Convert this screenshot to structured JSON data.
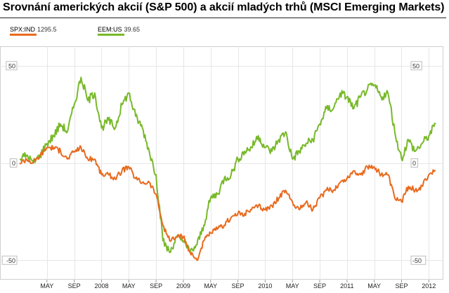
{
  "chart_data": {
    "type": "line",
    "title": "Srovnání amerických akcií (S&P 500) a akcií mladých trhů (MSCI Emerging Markets)",
    "xlabel": "",
    "ylabel": "",
    "y_unit": "%",
    "ylim": [
      -60,
      60
    ],
    "yticks": [
      50,
      0,
      -50
    ],
    "ytick_labels": [
      "50",
      "0",
      "-50"
    ],
    "grid": true,
    "legend_position": "top-left",
    "x_ticks": [
      {
        "label": "MAY",
        "x": "2007-05"
      },
      {
        "label": "SEP",
        "x": "2007-09"
      },
      {
        "label": "2008",
        "x": "2008-01"
      },
      {
        "label": "MAY",
        "x": "2008-05"
      },
      {
        "label": "SEP",
        "x": "2008-09"
      },
      {
        "label": "2009",
        "x": "2009-01"
      },
      {
        "label": "MAY",
        "x": "2009-05"
      },
      {
        "label": "SEP",
        "x": "2009-09"
      },
      {
        "label": "2010",
        "x": "2010-01"
      },
      {
        "label": "MAY",
        "x": "2010-05"
      },
      {
        "label": "SEP",
        "x": "2010-09"
      },
      {
        "label": "2011",
        "x": "2011-01"
      },
      {
        "label": "MAY",
        "x": "2011-05"
      },
      {
        "label": "SEP",
        "x": "2011-09"
      },
      {
        "label": "2012",
        "x": "2012-01"
      }
    ],
    "x_range": [
      "2007-01",
      "2012-02"
    ],
    "series": [
      {
        "name": "EEM:US",
        "legend_value": "39.65",
        "color": "#78b92a",
        "points": [
          [
            "2007-01",
            2
          ],
          [
            "2007-02",
            4
          ],
          [
            "2007-03",
            0
          ],
          [
            "2007-04",
            4
          ],
          [
            "2007-05",
            10
          ],
          [
            "2007-06",
            14
          ],
          [
            "2007-07",
            20
          ],
          [
            "2007-08",
            16
          ],
          [
            "2007-09",
            30
          ],
          [
            "2007-10",
            44
          ],
          [
            "2007-11",
            32
          ],
          [
            "2007-12",
            36
          ],
          [
            "2008-01",
            18
          ],
          [
            "2008-02",
            22
          ],
          [
            "2008-03",
            18
          ],
          [
            "2008-04",
            30
          ],
          [
            "2008-05",
            36
          ],
          [
            "2008-06",
            24
          ],
          [
            "2008-07",
            18
          ],
          [
            "2008-08",
            6
          ],
          [
            "2008-09",
            -6
          ],
          [
            "2008-10",
            -40
          ],
          [
            "2008-11",
            -46
          ],
          [
            "2008-12",
            -38
          ],
          [
            "2009-01",
            -40
          ],
          [
            "2009-02",
            -46
          ],
          [
            "2009-03",
            -42
          ],
          [
            "2009-04",
            -32
          ],
          [
            "2009-05",
            -18
          ],
          [
            "2009-06",
            -16
          ],
          [
            "2009-07",
            -8
          ],
          [
            "2009-08",
            -6
          ],
          [
            "2009-09",
            2
          ],
          [
            "2009-10",
            6
          ],
          [
            "2009-11",
            8
          ],
          [
            "2009-12",
            14
          ],
          [
            "2010-01",
            8
          ],
          [
            "2010-02",
            6
          ],
          [
            "2010-03",
            12
          ],
          [
            "2010-04",
            16
          ],
          [
            "2010-05",
            2
          ],
          [
            "2010-06",
            6
          ],
          [
            "2010-07",
            10
          ],
          [
            "2010-08",
            12
          ],
          [
            "2010-09",
            20
          ],
          [
            "2010-10",
            28
          ],
          [
            "2010-11",
            28
          ],
          [
            "2010-12",
            36
          ],
          [
            "2011-01",
            34
          ],
          [
            "2011-02",
            28
          ],
          [
            "2011-03",
            34
          ],
          [
            "2011-04",
            38
          ],
          [
            "2011-05",
            40
          ],
          [
            "2011-06",
            34
          ],
          [
            "2011-07",
            36
          ],
          [
            "2011-08",
            16
          ],
          [
            "2011-09",
            2
          ],
          [
            "2011-10",
            12
          ],
          [
            "2011-11",
            6
          ],
          [
            "2011-12",
            10
          ],
          [
            "2012-01",
            14
          ],
          [
            "2012-02",
            20
          ]
        ]
      },
      {
        "name": "SPX:IND",
        "legend_value": "1295.5",
        "color": "#e86b1f",
        "points": [
          [
            "2007-01",
            0
          ],
          [
            "2007-02",
            2
          ],
          [
            "2007-03",
            0
          ],
          [
            "2007-04",
            4
          ],
          [
            "2007-05",
            8
          ],
          [
            "2007-06",
            8
          ],
          [
            "2007-07",
            6
          ],
          [
            "2007-08",
            2
          ],
          [
            "2007-09",
            6
          ],
          [
            "2007-10",
            8
          ],
          [
            "2007-11",
            2
          ],
          [
            "2007-12",
            2
          ],
          [
            "2008-01",
            -6
          ],
          [
            "2008-02",
            -6
          ],
          [
            "2008-03",
            -8
          ],
          [
            "2008-04",
            -4
          ],
          [
            "2008-05",
            -2
          ],
          [
            "2008-06",
            -8
          ],
          [
            "2008-07",
            -10
          ],
          [
            "2008-08",
            -10
          ],
          [
            "2008-09",
            -16
          ],
          [
            "2008-10",
            -32
          ],
          [
            "2008-11",
            -40
          ],
          [
            "2008-12",
            -38
          ],
          [
            "2009-01",
            -38
          ],
          [
            "2009-02",
            -46
          ],
          [
            "2009-03",
            -50
          ],
          [
            "2009-04",
            -40
          ],
          [
            "2009-05",
            -36
          ],
          [
            "2009-06",
            -34
          ],
          [
            "2009-07",
            -32
          ],
          [
            "2009-08",
            -28
          ],
          [
            "2009-09",
            -26
          ],
          [
            "2009-10",
            -26
          ],
          [
            "2009-11",
            -24
          ],
          [
            "2009-12",
            -22
          ],
          [
            "2010-01",
            -24
          ],
          [
            "2010-02",
            -22
          ],
          [
            "2010-03",
            -18
          ],
          [
            "2010-04",
            -14
          ],
          [
            "2010-05",
            -20
          ],
          [
            "2010-06",
            -24
          ],
          [
            "2010-07",
            -20
          ],
          [
            "2010-08",
            -24
          ],
          [
            "2010-09",
            -18
          ],
          [
            "2010-10",
            -14
          ],
          [
            "2010-11",
            -14
          ],
          [
            "2010-12",
            -10
          ],
          [
            "2011-01",
            -8
          ],
          [
            "2011-02",
            -4
          ],
          [
            "2011-03",
            -6
          ],
          [
            "2011-04",
            -2
          ],
          [
            "2011-05",
            -2
          ],
          [
            "2011-06",
            -6
          ],
          [
            "2011-07",
            -6
          ],
          [
            "2011-08",
            -18
          ],
          [
            "2011-09",
            -20
          ],
          [
            "2011-10",
            -12
          ],
          [
            "2011-11",
            -14
          ],
          [
            "2011-12",
            -12
          ],
          [
            "2012-01",
            -6
          ],
          [
            "2012-02",
            -4
          ]
        ]
      }
    ]
  },
  "legend": {
    "items": [
      {
        "symbol": "SPX:IND",
        "value": "1295.5",
        "color": "#e86b1f"
      },
      {
        "symbol": "EEM:US",
        "value": "39.65",
        "color": "#78b92a"
      }
    ]
  }
}
